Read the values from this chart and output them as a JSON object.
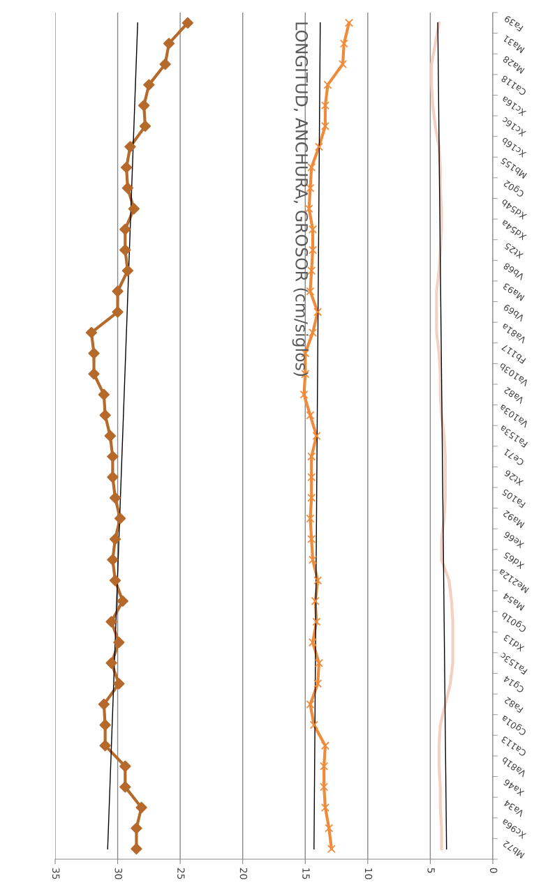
{
  "chart_data": {
    "type": "line",
    "orientation": "horizontal",
    "title": "LONGITUD, ANCHURA, GROSOR (cm/siglos)",
    "categories": [
      "Fa39",
      "Ma31",
      "Ma28",
      "Ca118",
      "Xc16a",
      "Xc16c",
      "Xc16b",
      "Mb155",
      "Cg02",
      "Xd54b",
      "Xd54a",
      "Xt25",
      "Vb68",
      "Ma93",
      "Vb69",
      "Va81a",
      "Fb117",
      "Va103b",
      "Va82",
      "Va103a",
      "Fa153a",
      "Ce71",
      "Xt26",
      "Fa105",
      "Ma92",
      "Xe66",
      "Xd65",
      "Me212a",
      "Ma54",
      "Cg01b",
      "Xd13",
      "Fa153c",
      "Cg14",
      "Fa82",
      "Cg01a",
      "Ca113",
      "Va81b",
      "Xa46",
      "Va34",
      "Xc96a",
      "Mb72"
    ],
    "series": [
      {
        "color": "#b5692b",
        "marker": "diamond",
        "values": [
          24.4,
          25.9,
          26.2,
          27.5,
          27.9,
          27.8,
          29.0,
          29.3,
          29.2,
          28.7,
          29.4,
          29.4,
          29.2,
          30.0,
          30.0,
          32.1,
          31.9,
          31.9,
          31.1,
          31.0,
          30.6,
          30.4,
          30.4,
          30.2,
          29.8,
          30.2,
          30.4,
          30.2,
          29.6,
          30.5,
          29.9,
          30.5,
          29.9,
          31.1,
          31.0,
          31.0,
          29.4,
          29.4,
          28.1,
          28.5,
          28.5
        ]
      },
      {
        "color": "#ef8c3c",
        "marker": "cross",
        "values": [
          11.5,
          11.9,
          12.0,
          13.2,
          13.4,
          13.4,
          13.9,
          14.5,
          14.6,
          14.7,
          14.4,
          14.4,
          14.5,
          14.6,
          14.0,
          14.4,
          15.0,
          15.0,
          15.1,
          14.6,
          14.1,
          14.5,
          14.5,
          14.5,
          14.6,
          14.5,
          14.4,
          14.0,
          14.2,
          14.1,
          14.4,
          13.9,
          14.0,
          14.6,
          14.3,
          13.4,
          13.5,
          13.5,
          13.4,
          13.1,
          12.9
        ]
      },
      {
        "color": "#f3d0c2",
        "marker": "none",
        "values": [
          4.3,
          4.6,
          4.9,
          4.9,
          4.8,
          4.6,
          4.3,
          4.2,
          4.2,
          4.1,
          4.1,
          4.2,
          4.3,
          4.5,
          4.5,
          4.5,
          4.3,
          4.2,
          4.2,
          4.1,
          3.9,
          3.8,
          3.8,
          3.8,
          3.9,
          4.1,
          4.1,
          3.5,
          3.3,
          3.2,
          3.2,
          3.2,
          3.4,
          3.8,
          4.2,
          4.3,
          4.3,
          4.2,
          4.2,
          4.1,
          4.1
        ]
      },
      {
        "color": "#000000",
        "marker": "none",
        "x": [
          "Fa39",
          "Mb72"
        ],
        "values": [
          28.4,
          30.8
        ]
      },
      {
        "color": "#000000",
        "marker": "none",
        "x": [
          "Fa39",
          "Mb72"
        ],
        "values": [
          13.8,
          14.3
        ]
      },
      {
        "color": "#000000",
        "marker": "none",
        "x": [
          "Fa39",
          "Mb72"
        ],
        "values": [
          4.4,
          3.7
        ]
      }
    ],
    "xlim": [
      35,
      0
    ],
    "xticks": [
      0,
      5,
      10,
      15,
      20,
      25,
      30,
      35
    ],
    "grid": "x",
    "legend": false
  }
}
